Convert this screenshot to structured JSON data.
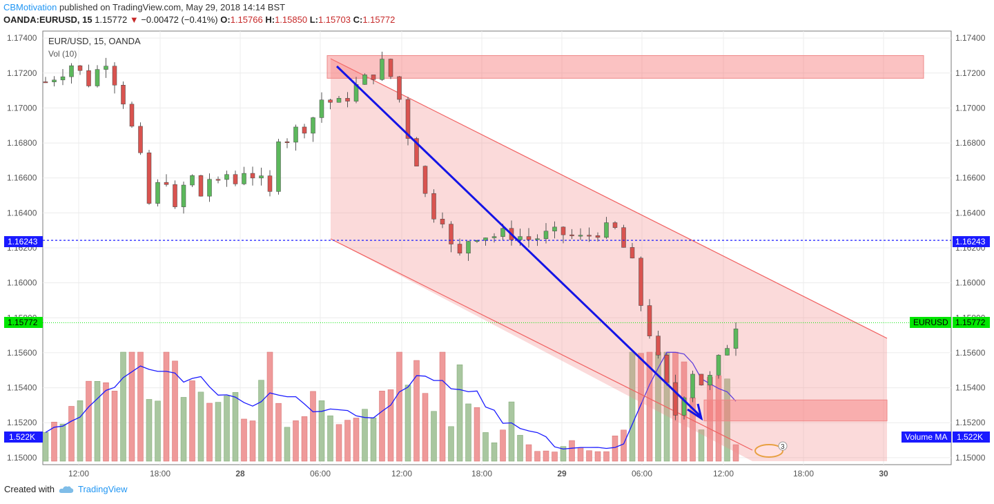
{
  "header": {
    "author": "CBMotivation",
    "published": "published on TradingView.com, May 29, 2018 14:14 BST",
    "symbol": "OANDA:EURUSD, 15",
    "last": "1.15772",
    "change": "−0.00472 (−0.41%)",
    "o_label": "O:",
    "o": "1.15766",
    "h_label": "H:",
    "h": "1.15850",
    "l_label": "L:",
    "l": "1.15703",
    "c_label": "C:",
    "c": "1.15772"
  },
  "chart_labels": {
    "title": "EUR/USD, 15, OANDA",
    "vol": "Vol (10)",
    "line_level": "1.16243",
    "price_label": "1.15772",
    "price_tag": "EURUSD",
    "vol_value": "1.522K",
    "vol_ma_tag": "Volume MA",
    "alert_count": "3"
  },
  "footer": {
    "created": "Created with",
    "brand": "TradingView"
  },
  "colors": {
    "up": "#5cb85c",
    "down": "#d9534f",
    "zone": "#f48c8c",
    "arrow": "#1414e6",
    "level": "#1a1aff",
    "price": "#00e600"
  },
  "chart_data": {
    "type": "candlestick",
    "interval": "15",
    "ylim": [
      1.1496,
      1.1744
    ],
    "yticks": [
      "1.17400",
      "1.17200",
      "1.17000",
      "1.16800",
      "1.16600",
      "1.16400",
      "1.16200",
      "1.16000",
      "1.15800",
      "1.15600",
      "1.15400",
      "1.15200",
      "1.15000"
    ],
    "xticks": [
      "12:00",
      "18:00",
      "28",
      "06:00",
      "12:00",
      "18:00",
      "29",
      "06:00",
      "12:00",
      "18:00",
      "30"
    ],
    "close_path": [
      [
        0,
        1.1715
      ],
      [
        3,
        1.1725
      ],
      [
        5,
        1.1715
      ],
      [
        7,
        1.1728
      ],
      [
        9,
        1.1705
      ],
      [
        10,
        1.1688
      ],
      [
        11,
        1.167
      ],
      [
        12,
        1.1645
      ],
      [
        13,
        1.1655
      ],
      [
        14,
        1.166
      ],
      [
        15,
        1.164
      ],
      [
        16,
        1.1655
      ],
      [
        17,
        1.166
      ],
      [
        18,
        1.165
      ],
      [
        19,
        1.166
      ],
      [
        20,
        1.1655
      ],
      [
        21,
        1.1662
      ],
      [
        22,
        1.1657
      ],
      [
        23,
        1.1665
      ],
      [
        24,
        1.1662
      ],
      [
        25,
        1.1657
      ],
      [
        26,
        1.165
      ],
      [
        27,
        1.1685
      ],
      [
        28,
        1.1683
      ],
      [
        29,
        1.1687
      ],
      [
        30,
        1.169
      ],
      [
        31,
        1.1695
      ],
      [
        32,
        1.1705
      ],
      [
        34,
        1.1702
      ],
      [
        36,
        1.1712
      ],
      [
        38,
        1.172
      ],
      [
        39,
        1.1725
      ],
      [
        40,
        1.1718
      ],
      [
        41,
        1.1705
      ],
      [
        42,
        1.1685
      ],
      [
        43,
        1.167
      ],
      [
        44,
        1.165
      ],
      [
        45,
        1.164
      ],
      [
        46,
        1.1638
      ],
      [
        47,
        1.162
      ],
      [
        48,
        1.1615
      ],
      [
        49,
        1.1625
      ],
      [
        50,
        1.1628
      ],
      [
        52,
        1.1627
      ],
      [
        54,
        1.1628
      ],
      [
        56,
        1.1625
      ],
      [
        58,
        1.1627
      ],
      [
        60,
        1.1628
      ],
      [
        62,
        1.1625
      ],
      [
        64,
        1.163
      ],
      [
        66,
        1.163
      ],
      [
        68,
        1.161
      ],
      [
        69,
        1.1588
      ],
      [
        70,
        1.1572
      ],
      [
        71,
        1.1555
      ],
      [
        72,
        1.154
      ],
      [
        73,
        1.1525
      ],
      [
        74,
        1.1538
      ],
      [
        75,
        1.155
      ],
      [
        76,
        1.1543
      ],
      [
        77,
        1.1545
      ],
      [
        78,
        1.1555
      ],
      [
        79,
        1.1565
      ],
      [
        80,
        1.1577
      ]
    ],
    "volume_ma_level": "1.522K",
    "zones": [
      {
        "name": "resistance zone",
        "y": [
          1.1717,
          1.173
        ]
      },
      {
        "name": "support zone",
        "y": [
          1.1521,
          1.1533
        ]
      }
    ],
    "horizontal_line": 1.16243,
    "last_price": 1.15772
  }
}
